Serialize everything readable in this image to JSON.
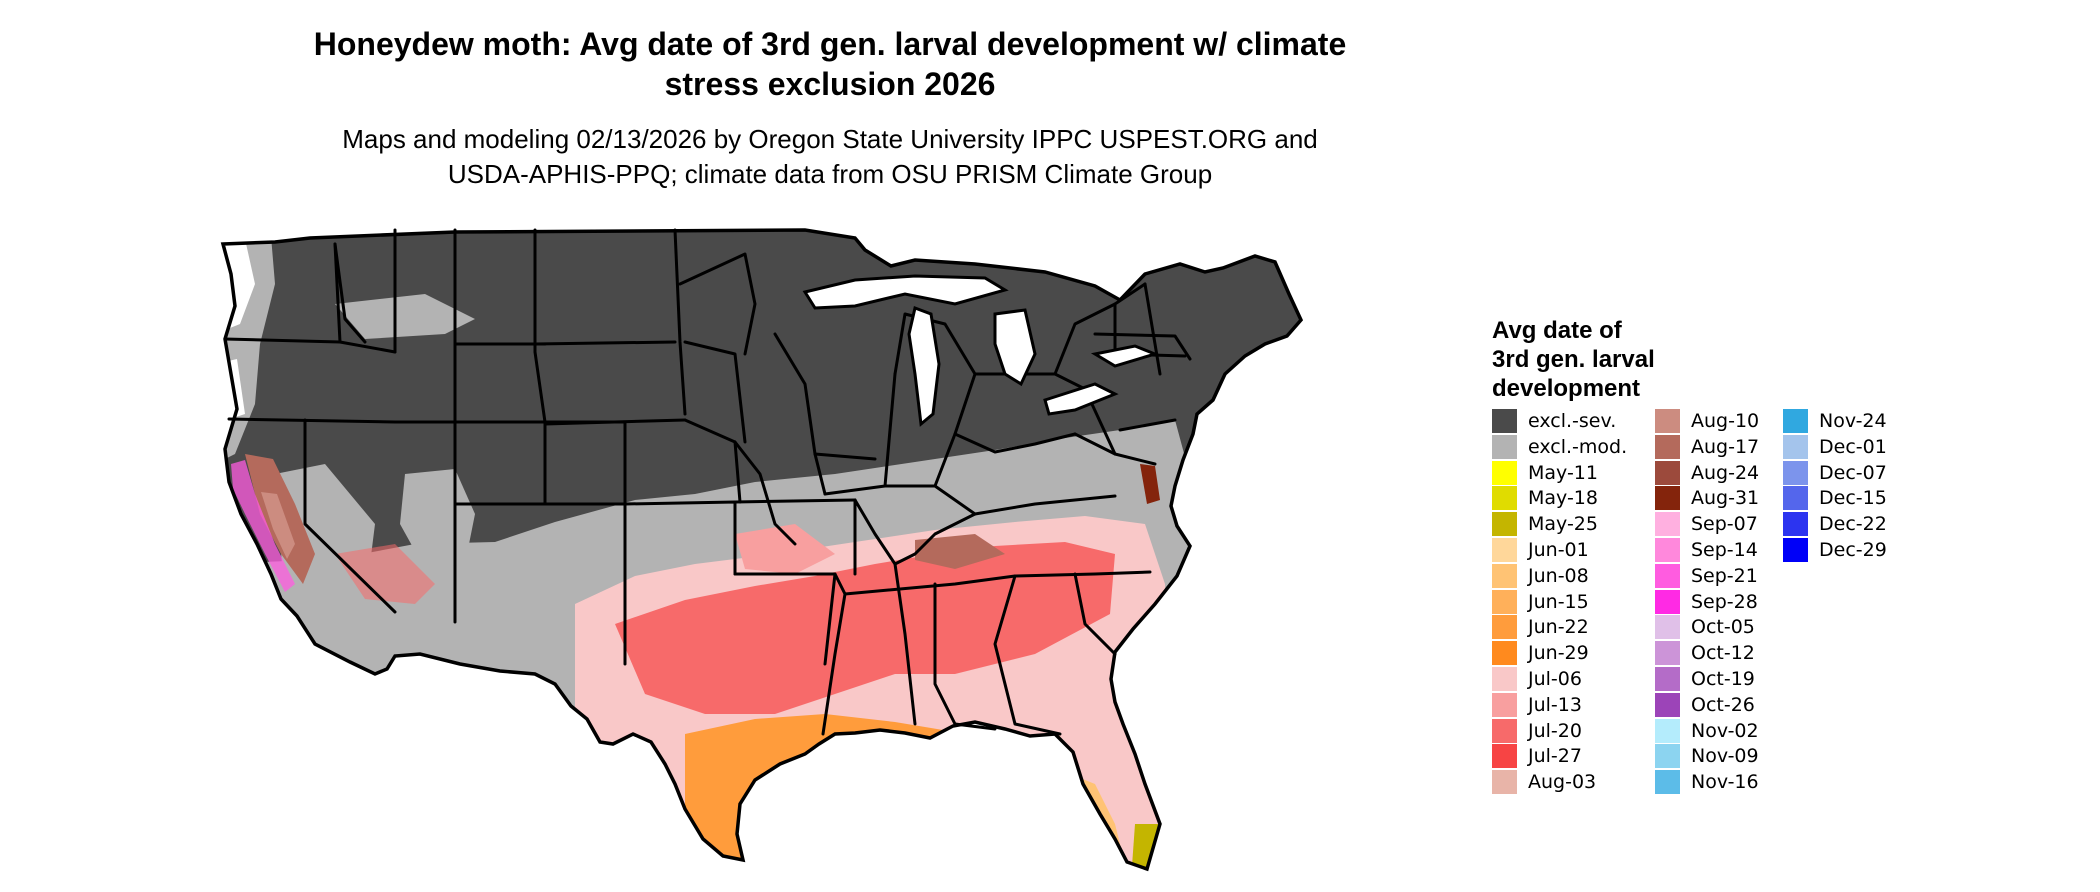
{
  "title": {
    "line1": "Honeydew moth: Avg date of 3rd gen. larval development w/ climate",
    "line2": "stress exclusion 2026"
  },
  "subtitle": {
    "line1": "Maps and modeling 02/13/2026 by Oregon State University IPPC USPEST.ORG and",
    "line2": "USDA-APHIS-PPQ; climate data from OSU PRISM Climate Group"
  },
  "legend": {
    "title_line1": "Avg date of",
    "title_line2": "3rd gen. larval",
    "title_line3": "development",
    "columns": [
      [
        {
          "label": "excl.-sev.",
          "color": "#4a4a4a"
        },
        {
          "label": "excl.-mod.",
          "color": "#b3b3b3"
        },
        {
          "label": "May-11",
          "color": "#ffff00"
        },
        {
          "label": "May-18",
          "color": "#e0dc00"
        },
        {
          "label": "May-25",
          "color": "#c4b500"
        },
        {
          "label": "Jun-01",
          "color": "#ffd79a"
        },
        {
          "label": "Jun-08",
          "color": "#ffc374"
        },
        {
          "label": "Jun-15",
          "color": "#ffb05a"
        },
        {
          "label": "Jun-22",
          "color": "#ff9c3c"
        },
        {
          "label": "Jun-29",
          "color": "#ff8a1e"
        },
        {
          "label": "Jul-06",
          "color": "#f9c8c8"
        },
        {
          "label": "Jul-13",
          "color": "#f89f9f"
        },
        {
          "label": "Jul-20",
          "color": "#f76a6a"
        },
        {
          "label": "Jul-27",
          "color": "#f74444"
        },
        {
          "label": "Aug-03",
          "color": "#e8b4a8"
        }
      ],
      [
        {
          "label": "Aug-10",
          "color": "#cc8c80"
        },
        {
          "label": "Aug-17",
          "color": "#b46a5c"
        },
        {
          "label": "Aug-24",
          "color": "#9c4a3c"
        },
        {
          "label": "Aug-31",
          "color": "#84240c"
        },
        {
          "label": "Sep-07",
          "color": "#ffb0e0"
        },
        {
          "label": "Sep-14",
          "color": "#ff88dc"
        },
        {
          "label": "Sep-21",
          "color": "#ff5ce0"
        },
        {
          "label": "Sep-28",
          "color": "#ff2ae4"
        },
        {
          "label": "Oct-05",
          "color": "#e0c0e8"
        },
        {
          "label": "Oct-12",
          "color": "#cc94d8"
        },
        {
          "label": "Oct-19",
          "color": "#b46cc8"
        },
        {
          "label": "Oct-26",
          "color": "#9c44b8"
        },
        {
          "label": "Nov-02",
          "color": "#b4ecfc"
        },
        {
          "label": "Nov-09",
          "color": "#8cd4f0"
        },
        {
          "label": "Nov-16",
          "color": "#5cbce8"
        }
      ],
      [
        {
          "label": "Nov-24",
          "color": "#30a8e0"
        },
        {
          "label": "Dec-01",
          "color": "#a4c4ec"
        },
        {
          "label": "Dec-07",
          "color": "#7c94ec"
        },
        {
          "label": "Dec-15",
          "color": "#5466ec"
        },
        {
          "label": "Dec-22",
          "color": "#2c34f0"
        },
        {
          "label": "Dec-29",
          "color": "#0000f8"
        }
      ]
    ]
  }
}
